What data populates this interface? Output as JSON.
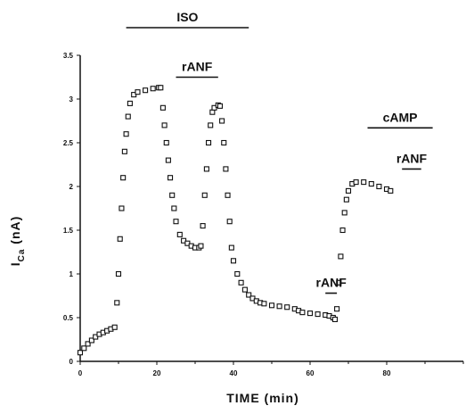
{
  "chart_data": {
    "type": "scatter",
    "xlabel": "TIME   (min)",
    "ylabel_main": "I",
    "ylabel_sub": "Ca",
    "ylabel_unit": "(nA)",
    "xlim": [
      0,
      100
    ],
    "ylim": [
      0,
      3.5
    ],
    "x_ticks": [
      0,
      20,
      40,
      60,
      80
    ],
    "x_tick_labels": [
      "0",
      "20",
      "40",
      "60",
      "80"
    ],
    "y_ticks": [
      0,
      0.5,
      1,
      1.5,
      2,
      2.5,
      3,
      3.5
    ],
    "y_tick_labels": [
      "0",
      "0.5",
      "1",
      "1.5",
      "2",
      "2.5",
      "3",
      "3.5"
    ],
    "grid": false,
    "marker": "open-square",
    "series": [
      {
        "values": [
          [
            0,
            0.1
          ],
          [
            1,
            0.15
          ],
          [
            2,
            0.2
          ],
          [
            3,
            0.24
          ],
          [
            4,
            0.28
          ],
          [
            5,
            0.31
          ],
          [
            6,
            0.33
          ],
          [
            7,
            0.35
          ],
          [
            8,
            0.37
          ],
          [
            9,
            0.39
          ],
          [
            9.6,
            0.67
          ],
          [
            10,
            1.0
          ],
          [
            10.4,
            1.4
          ],
          [
            10.8,
            1.75
          ],
          [
            11.2,
            2.1
          ],
          [
            11.6,
            2.4
          ],
          [
            12,
            2.6
          ],
          [
            12.5,
            2.8
          ],
          [
            13,
            2.95
          ],
          [
            14,
            3.05
          ],
          [
            15,
            3.08
          ],
          [
            17,
            3.1
          ],
          [
            19,
            3.12
          ],
          [
            20.5,
            3.13
          ],
          [
            21,
            3.13
          ],
          [
            21.6,
            2.9
          ],
          [
            22,
            2.7
          ],
          [
            22.5,
            2.5
          ],
          [
            23,
            2.3
          ],
          [
            23.5,
            2.1
          ],
          [
            24,
            1.9
          ],
          [
            24.5,
            1.75
          ],
          [
            25,
            1.6
          ],
          [
            26,
            1.45
          ],
          [
            27,
            1.38
          ],
          [
            28,
            1.35
          ],
          [
            29,
            1.32
          ],
          [
            30,
            1.3
          ],
          [
            31,
            1.3
          ],
          [
            31.5,
            1.32
          ],
          [
            32,
            1.55
          ],
          [
            32.5,
            1.9
          ],
          [
            33,
            2.2
          ],
          [
            33.5,
            2.5
          ],
          [
            34,
            2.7
          ],
          [
            34.5,
            2.85
          ],
          [
            35,
            2.9
          ],
          [
            36,
            2.93
          ],
          [
            36.5,
            2.92
          ],
          [
            37,
            2.75
          ],
          [
            37.5,
            2.5
          ],
          [
            38,
            2.2
          ],
          [
            38.5,
            1.9
          ],
          [
            39,
            1.6
          ],
          [
            39.5,
            1.3
          ],
          [
            40,
            1.15
          ],
          [
            41,
            1.0
          ],
          [
            42,
            0.9
          ],
          [
            43,
            0.82
          ],
          [
            44,
            0.76
          ],
          [
            45,
            0.72
          ],
          [
            46,
            0.69
          ],
          [
            47,
            0.67
          ],
          [
            48,
            0.66
          ],
          [
            50,
            0.64
          ],
          [
            52,
            0.63
          ],
          [
            54,
            0.62
          ],
          [
            56,
            0.6
          ],
          [
            57,
            0.58
          ],
          [
            58,
            0.56
          ],
          [
            60,
            0.55
          ],
          [
            62,
            0.54
          ],
          [
            64,
            0.53
          ],
          [
            65,
            0.52
          ],
          [
            66,
            0.5
          ],
          [
            66.5,
            0.48
          ],
          [
            67,
            0.6
          ],
          [
            67.5,
            0.9
          ],
          [
            68,
            1.2
          ],
          [
            68.5,
            1.5
          ],
          [
            69,
            1.7
          ],
          [
            69.5,
            1.85
          ],
          [
            70,
            1.95
          ],
          [
            71,
            2.03
          ],
          [
            72,
            2.05
          ],
          [
            74,
            2.05
          ],
          [
            76,
            2.03
          ],
          [
            78,
            2.0
          ],
          [
            80,
            1.97
          ],
          [
            81,
            1.95
          ]
        ]
      }
    ],
    "bars": [
      {
        "label": "ISO",
        "x_start": 12,
        "x_end": 44,
        "y_level": "top"
      },
      {
        "label": "rANF",
        "x_start": 25,
        "x_end": 36,
        "y_level": 3.25
      },
      {
        "label": "rANF",
        "x_start": 64,
        "x_end": 67,
        "y_level": 0.78
      },
      {
        "label": "cAMP",
        "x_start": 75,
        "x_end": 92,
        "y_level": 2.67
      },
      {
        "label": "rANF",
        "x_start": 84,
        "x_end": 89,
        "y_level": 2.2
      }
    ]
  }
}
